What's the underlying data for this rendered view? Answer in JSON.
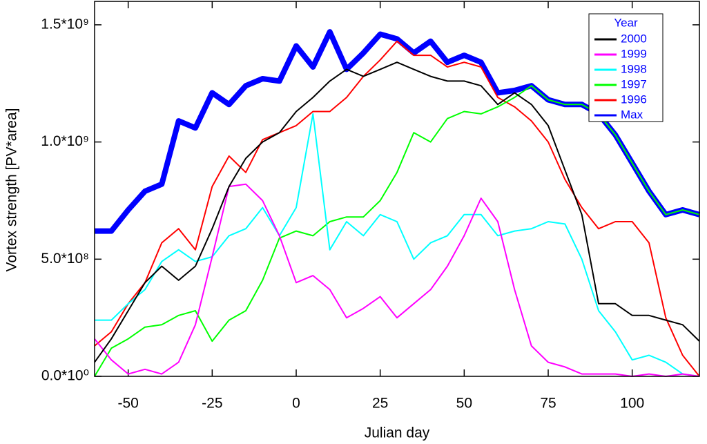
{
  "chart_data": {
    "type": "line",
    "x_label": "Julian day",
    "y_label": "Vortex strength [PV*area]",
    "xlim": [
      -60,
      120
    ],
    "xticks": [
      -50,
      -25,
      0,
      25,
      50,
      75,
      100
    ],
    "ylim": [
      0,
      1600000000.0
    ],
    "yticks": [
      {
        "value": 0,
        "label": "0.0*10⁰"
      },
      {
        "value": 500000000.0,
        "label": "5.0*10⁸"
      },
      {
        "value": 1000000000.0,
        "label": "1.0*10⁹"
      },
      {
        "value": 1500000000.0,
        "label": "1.5*10⁹"
      }
    ],
    "legend_title": "Year",
    "legend": "upper right",
    "x": [
      -60,
      -55,
      -50,
      -45,
      -40,
      -35,
      -30,
      -25,
      -20,
      -15,
      -10,
      -5,
      0,
      5,
      10,
      15,
      20,
      25,
      30,
      35,
      40,
      45,
      50,
      55,
      60,
      65,
      70,
      75,
      80,
      85,
      90,
      95,
      100,
      105,
      110,
      115,
      120
    ],
    "series": [
      {
        "name": "2000",
        "color": "#000000",
        "values": [
          60000000.0,
          160000000.0,
          280000000.0,
          400000000.0,
          470000000.0,
          410000000.0,
          470000000.0,
          630000000.0,
          810000000.0,
          930000000.0,
          1000000000.0,
          1040000000.0,
          1130000000.0,
          1190000000.0,
          1260000000.0,
          1310000000.0,
          1280000000.0,
          1310000000.0,
          1340000000.0,
          1310000000.0,
          1280000000.0,
          1260000000.0,
          1260000000.0,
          1240000000.0,
          1160000000.0,
          1210000000.0,
          1160000000.0,
          1070000000.0,
          880000000.0,
          690000000.0,
          310000000.0,
          310000000.0,
          260000000.0,
          260000000.0,
          240000000.0,
          220000000.0,
          150000000.0
        ]
      },
      {
        "name": "1999",
        "color": "#ff00ff",
        "values": [
          160000000.0,
          70000000.0,
          10000000.0,
          30000000.0,
          10000000.0,
          60000000.0,
          220000000.0,
          510000000.0,
          810000000.0,
          820000000.0,
          750000000.0,
          600000000.0,
          400000000.0,
          430000000.0,
          370000000.0,
          250000000.0,
          290000000.0,
          340000000.0,
          250000000.0,
          310000000.0,
          370000000.0,
          470000000.0,
          600000000.0,
          760000000.0,
          660000000.0,
          370000000.0,
          130000000.0,
          60000000.0,
          40000000.0,
          10000000.0,
          10000000.0,
          10000000.0,
          0,
          10000000.0,
          0,
          10000000.0,
          0
        ]
      },
      {
        "name": "1998",
        "color": "#00ffff",
        "values": [
          240000000.0,
          240000000.0,
          310000000.0,
          370000000.0,
          490000000.0,
          540000000.0,
          490000000.0,
          510000000.0,
          600000000.0,
          630000000.0,
          720000000.0,
          600000000.0,
          720000000.0,
          1120000000.0,
          540000000.0,
          660000000.0,
          600000000.0,
          690000000.0,
          660000000.0,
          500000000.0,
          570000000.0,
          600000000.0,
          690000000.0,
          690000000.0,
          600000000.0,
          620000000.0,
          630000000.0,
          660000000.0,
          650000000.0,
          500000000.0,
          280000000.0,
          190000000.0,
          70000000.0,
          90000000.0,
          60000000.0,
          10000000.0,
          0
        ]
      },
      {
        "name": "1997",
        "color": "#00ff00",
        "values": [
          0,
          120000000.0,
          160000000.0,
          210000000.0,
          220000000.0,
          260000000.0,
          280000000.0,
          150000000.0,
          240000000.0,
          280000000.0,
          410000000.0,
          590000000.0,
          620000000.0,
          600000000.0,
          660000000.0,
          680000000.0,
          680000000.0,
          750000000.0,
          870000000.0,
          1040000000.0,
          1000000000.0,
          1100000000.0,
          1130000000.0,
          1120000000.0,
          1150000000.0,
          1190000000.0,
          1240000000.0,
          1180000000.0,
          1160000000.0,
          1160000000.0,
          1120000000.0,
          1030000000.0,
          910000000.0,
          790000000.0,
          690000000.0,
          710000000.0,
          690000000.0
        ]
      },
      {
        "name": "1996",
        "color": "#ff0000",
        "values": [
          130000000.0,
          190000000.0,
          310000000.0,
          400000000.0,
          570000000.0,
          630000000.0,
          540000000.0,
          810000000.0,
          940000000.0,
          870000000.0,
          1010000000.0,
          1040000000.0,
          1070000000.0,
          1130000000.0,
          1130000000.0,
          1190000000.0,
          1280000000.0,
          1350000000.0,
          1430000000.0,
          1370000000.0,
          1370000000.0,
          1320000000.0,
          1340000000.0,
          1320000000.0,
          1190000000.0,
          1150000000.0,
          1090000000.0,
          1000000000.0,
          840000000.0,
          720000000.0,
          630000000.0,
          660000000.0,
          660000000.0,
          570000000.0,
          250000000.0,
          90000000.0,
          0
        ]
      },
      {
        "name": "Max",
        "color": "#0000ff",
        "values": [
          620000000.0,
          620000000.0,
          710000000.0,
          790000000.0,
          820000000.0,
          1090000000.0,
          1060000000.0,
          1210000000.0,
          1160000000.0,
          1240000000.0,
          1270000000.0,
          1260000000.0,
          1410000000.0,
          1320000000.0,
          1470000000.0,
          1310000000.0,
          1380000000.0,
          1460000000.0,
          1440000000.0,
          1380000000.0,
          1430000000.0,
          1340000000.0,
          1370000000.0,
          1340000000.0,
          1210000000.0,
          1220000000.0,
          1240000000.0,
          1180000000.0,
          1160000000.0,
          1160000000.0,
          1120000000.0,
          1030000000.0,
          910000000.0,
          790000000.0,
          690000000.0,
          710000000.0,
          690000000.0
        ]
      }
    ]
  }
}
